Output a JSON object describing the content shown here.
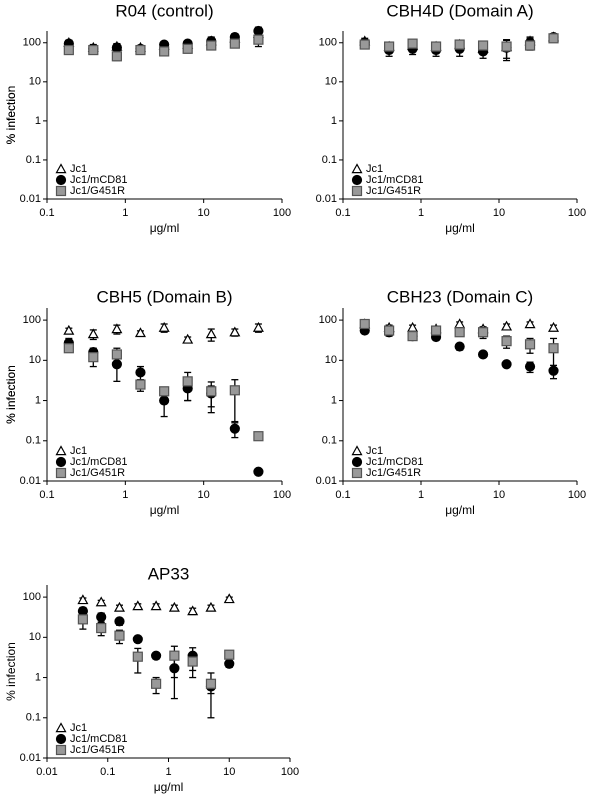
{
  "chart_data": [
    {
      "type": "scatter",
      "title": "R04 (control)",
      "xlabel": "μg/ml",
      "ylabel": "% infection",
      "log_x": true,
      "log_y": true,
      "legend": "lower left",
      "x": [
        0.19,
        0.39,
        0.78,
        1.56,
        3.13,
        6.25,
        12.5,
        25,
        50
      ],
      "xlim": [
        0.1,
        100
      ],
      "xticks": [
        0.1,
        1,
        10,
        100
      ],
      "ylim": [
        0.01,
        200
      ],
      "yticks": [
        0.01,
        0.1,
        1,
        10,
        100
      ],
      "series": [
        {
          "name": "Jc1",
          "marker": "triangle",
          "color": "#ffffff",
          "values": [
            100,
            75,
            80,
            75,
            85,
            90,
            110,
            130,
            170
          ],
          "errors": [
            15,
            15,
            15,
            10,
            10,
            15,
            20,
            20,
            30
          ]
        },
        {
          "name": "Jc1/mCD81",
          "marker": "circle",
          "color": "#000000",
          "values": [
            95,
            70,
            75,
            70,
            90,
            95,
            110,
            140,
            200
          ],
          "errors": [
            20,
            15,
            20,
            10,
            10,
            15,
            30,
            30,
            50
          ]
        },
        {
          "name": "Jc1/G451R",
          "marker": "square",
          "color": "#999999",
          "values": [
            65,
            65,
            45,
            65,
            60,
            70,
            85,
            95,
            120
          ],
          "errors": [
            10,
            10,
            10,
            10,
            10,
            15,
            15,
            20,
            40
          ]
        }
      ]
    },
    {
      "type": "scatter",
      "title": "CBH4D (Domain A)",
      "xlabel": "μg/ml",
      "ylabel": "% infection",
      "log_x": true,
      "log_y": true,
      "legend": "lower left",
      "x": [
        0.19,
        0.39,
        0.78,
        1.56,
        3.13,
        6.25,
        12.5,
        25,
        50
      ],
      "xlim": [
        0.1,
        100
      ],
      "xticks": [
        0.1,
        1,
        10,
        100
      ],
      "ylim": [
        0.01,
        200
      ],
      "yticks": [
        0.01,
        0.1,
        1,
        10,
        100
      ],
      "series": [
        {
          "name": "Jc1",
          "marker": "triangle",
          "color": "#ffffff",
          "values": [
            110,
            80,
            85,
            80,
            90,
            70,
            80,
            110,
            140
          ],
          "errors": [
            20,
            15,
            20,
            15,
            20,
            15,
            20,
            30,
            30
          ]
        },
        {
          "name": "Jc1/mCD81",
          "marker": "circle",
          "color": "#000000",
          "values": [
            100,
            65,
            70,
            65,
            70,
            60,
            75,
            100,
            140
          ],
          "errors": [
            20,
            20,
            20,
            20,
            25,
            20,
            40,
            30,
            30
          ]
        },
        {
          "name": "Jc1/G451R",
          "marker": "square",
          "color": "#999999",
          "values": [
            90,
            80,
            95,
            80,
            90,
            85,
            80,
            85,
            130
          ],
          "errors": [
            15,
            15,
            15,
            15,
            15,
            20,
            40,
            20,
            20
          ]
        }
      ]
    },
    {
      "type": "scatter",
      "title": "CBH5 (Domain B)",
      "xlabel": "μg/ml",
      "ylabel": "% infection",
      "log_x": true,
      "log_y": true,
      "legend": "lower left",
      "x": [
        0.19,
        0.39,
        0.78,
        1.56,
        3.13,
        6.25,
        12.5,
        25,
        50
      ],
      "xlim": [
        0.1,
        100
      ],
      "xticks": [
        0.1,
        1,
        10,
        100
      ],
      "ylim": [
        0.01,
        200
      ],
      "yticks": [
        0.01,
        0.1,
        1,
        10,
        100
      ],
      "series": [
        {
          "name": "Jc1",
          "marker": "triangle",
          "color": "#ffffff",
          "values": [
            55,
            45,
            60,
            48,
            65,
            33,
            45,
            50,
            65
          ],
          "errors": [
            8,
            12,
            15,
            6,
            15,
            5,
            15,
            10,
            15
          ]
        },
        {
          "name": "Jc1/mCD81",
          "marker": "circle",
          "color": "#000000",
          "values": [
            27,
            16,
            8,
            5,
            1.0,
            2,
            1.5,
            0.2,
            0.017
          ],
          "errors": [
            8,
            4,
            5,
            2,
            0.6,
            1,
            0.8,
            0.08,
            0.002
          ]
        },
        {
          "name": "Jc1/G451R",
          "marker": "square",
          "color": "#999999",
          "values": [
            20,
            12,
            14,
            2.5,
            1.7,
            3,
            1.7,
            1.8,
            0.13
          ],
          "errors": [
            3,
            5,
            6,
            0.8,
            0.3,
            2,
            1.2,
            1.5,
            0.02
          ]
        }
      ]
    },
    {
      "type": "scatter",
      "title": "CBH23 (Domain C)",
      "xlabel": "μg/ml",
      "ylabel": "% infection",
      "log_x": true,
      "log_y": true,
      "legend": "lower left",
      "x": [
        0.19,
        0.39,
        0.78,
        1.56,
        3.13,
        6.25,
        12.5,
        25,
        50
      ],
      "xlim": [
        0.1,
        100
      ],
      "xticks": [
        0.1,
        1,
        10,
        100
      ],
      "ylim": [
        0.01,
        200
      ],
      "yticks": [
        0.01,
        0.1,
        1,
        10,
        100
      ],
      "series": [
        {
          "name": "Jc1",
          "marker": "triangle",
          "color": "#ffffff",
          "values": [
            80,
            65,
            65,
            60,
            80,
            60,
            70,
            80,
            65
          ],
          "errors": [
            10,
            10,
            10,
            10,
            10,
            8,
            10,
            10,
            10
          ]
        },
        {
          "name": "Jc1/mCD81",
          "marker": "circle",
          "color": "#000000",
          "values": [
            55,
            50,
            40,
            38,
            22,
            14,
            8,
            7,
            5.5
          ],
          "errors": [
            8,
            10,
            5,
            5,
            4,
            2,
            1,
            2,
            2
          ]
        },
        {
          "name": "Jc1/G451R",
          "marker": "square",
          "color": "#999999",
          "values": [
            80,
            55,
            40,
            55,
            50,
            50,
            30,
            25,
            20
          ],
          "errors": [
            10,
            10,
            8,
            8,
            10,
            15,
            10,
            10,
            15
          ]
        }
      ]
    },
    {
      "type": "scatter",
      "title": "AP33",
      "xlabel": "μg/ml",
      "ylabel": "% infection",
      "log_x": true,
      "log_y": true,
      "legend": "lower left",
      "x": [
        0.039,
        0.078,
        0.156,
        0.3125,
        0.625,
        1.25,
        2.5,
        5,
        10
      ],
      "xlim": [
        0.01,
        100
      ],
      "xticks": [
        0.01,
        0.1,
        1,
        10,
        100
      ],
      "ylim": [
        0.01,
        200
      ],
      "yticks": [
        0.01,
        0.1,
        1,
        10,
        100
      ],
      "series": [
        {
          "name": "Jc1",
          "marker": "triangle",
          "color": "#ffffff",
          "values": [
            85,
            75,
            55,
            60,
            60,
            55,
            45,
            55,
            90
          ],
          "errors": [
            10,
            8,
            8,
            8,
            8,
            8,
            8,
            8,
            10
          ]
        },
        {
          "name": "Jc1/mCD81",
          "marker": "circle",
          "color": "#000000",
          "values": [
            45,
            32,
            25,
            9,
            3.5,
            1.7,
            3.5,
            0.6,
            2.2
          ],
          "errors": [
            10,
            8,
            5,
            1.5,
            0.6,
            1.4,
            2,
            0.2,
            0.4
          ]
        },
        {
          "name": "Jc1/G451R",
          "marker": "square",
          "color": "#999999",
          "values": [
            28,
            17,
            11,
            3.3,
            0.7,
            3.5,
            2.5,
            0.7,
            3.7
          ],
          "errors": [
            12,
            6,
            4,
            2,
            0.3,
            2.5,
            1.5,
            0.6,
            0.4
          ]
        }
      ]
    }
  ]
}
